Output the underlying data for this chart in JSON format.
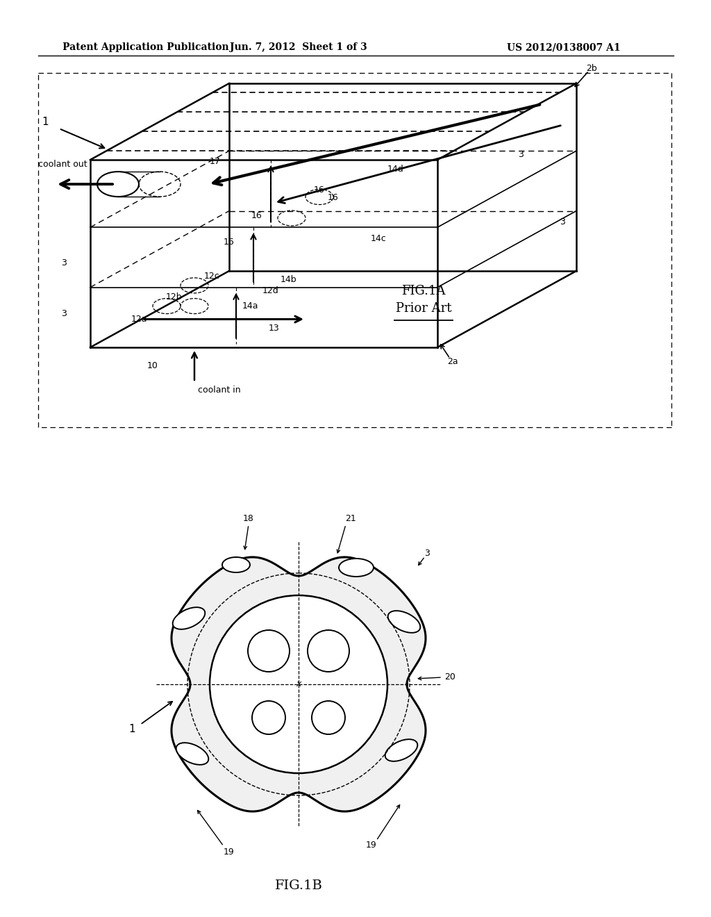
{
  "bg_color": "#ffffff",
  "header_left": "Patent Application Publication",
  "header_center": "Jun. 7, 2012  Sheet 1 of 3",
  "header_right": "US 2012/0138007 A1",
  "fig1a_label": "FIG.1A",
  "fig1a_sublabel": "Prior Art",
  "fig1b_label": "FIG.1B",
  "text_color": "#000000",
  "line_color": "#000000"
}
